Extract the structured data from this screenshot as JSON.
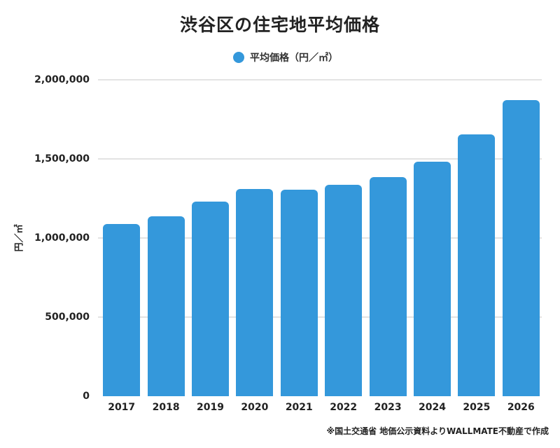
{
  "title": "渋谷区の住宅地平均価格",
  "legend": {
    "label": "平均価格（円／㎡）",
    "color": "#3498DB"
  },
  "ylabel": "円／㎡",
  "source_note": "※国土交通省 地価公示資料よりWALLMATE不動産で作成",
  "colors": {
    "bar": "#3498DB",
    "grid": "#E3E3E3",
    "text": "#222222"
  },
  "chart_data": {
    "type": "bar",
    "title": "渋谷区の住宅地平均価格",
    "xlabel": "",
    "ylabel": "円／㎡",
    "categories": [
      "2017",
      "2018",
      "2019",
      "2020",
      "2021",
      "2022",
      "2023",
      "2024",
      "2025",
      "2026"
    ],
    "series": [
      {
        "name": "平均価格（円／㎡）",
        "color": "#3498DB",
        "values": [
          1088000,
          1137000,
          1230000,
          1310000,
          1305000,
          1336000,
          1385000,
          1482000,
          1655000,
          1872000
        ]
      }
    ],
    "ylim": [
      0,
      2000000
    ],
    "yticks": [
      0,
      500000,
      1000000,
      1500000,
      2000000
    ],
    "ytick_labels": [
      "0",
      "500,000",
      "1,000,000",
      "1,500,000",
      "2,000,000"
    ],
    "grid": true,
    "legend_position": "top"
  }
}
